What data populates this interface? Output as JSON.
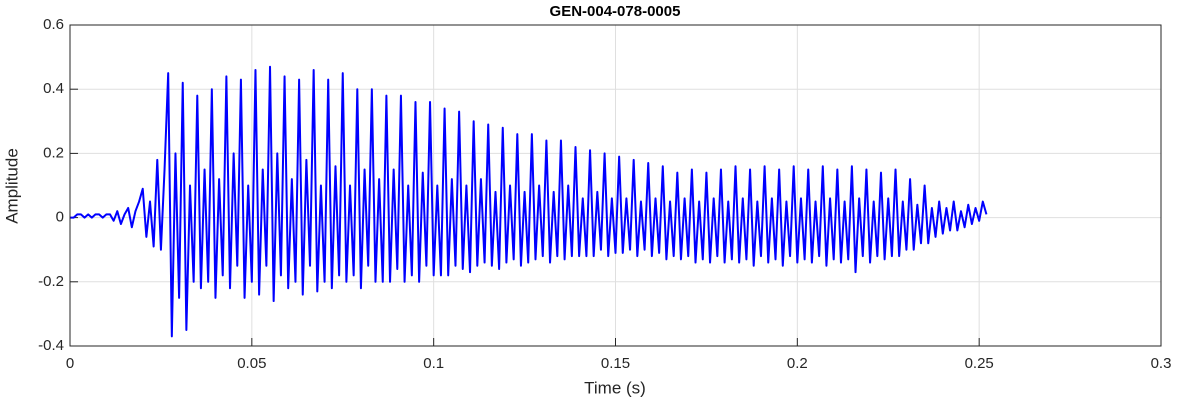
{
  "chart_data": {
    "type": "line",
    "title": "GEN-004-078-0005",
    "xlabel": "Time (s)",
    "ylabel": "Amplitude",
    "color": "#0000ff",
    "grid": true,
    "xlim": [
      0,
      0.3
    ],
    "xticks": [
      0,
      0.05,
      0.1,
      0.15,
      0.2,
      0.25,
      0.3
    ],
    "ylim": [
      -0.4,
      0.6
    ],
    "yticks": [
      -0.4,
      -0.2,
      0,
      0.2,
      0.4,
      0.6
    ],
    "x": [
      0,
      0.001,
      0.002,
      0.003,
      0.004,
      0.005,
      0.006,
      0.007,
      0.008,
      0.009,
      0.01,
      0.011,
      0.012,
      0.013,
      0.014,
      0.015,
      0.016,
      0.017,
      0.018,
      0.019,
      0.02,
      0.021,
      0.022,
      0.023,
      0.024,
      0.025,
      0.026,
      0.027,
      0.028,
      0.029,
      0.03,
      0.031,
      0.032,
      0.033,
      0.034,
      0.035,
      0.036,
      0.037,
      0.038,
      0.039,
      0.04,
      0.041,
      0.042,
      0.043,
      0.044,
      0.045,
      0.046,
      0.047,
      0.048,
      0.049,
      0.05,
      0.051,
      0.052,
      0.053,
      0.054,
      0.055,
      0.056,
      0.057,
      0.058,
      0.059,
      0.06,
      0.061,
      0.062,
      0.063,
      0.064,
      0.065,
      0.066,
      0.067,
      0.068,
      0.069,
      0.07,
      0.071,
      0.072,
      0.073,
      0.074,
      0.075,
      0.076,
      0.077,
      0.078,
      0.079,
      0.08,
      0.081,
      0.082,
      0.083,
      0.084,
      0.085,
      0.086,
      0.087,
      0.088,
      0.089,
      0.09,
      0.091,
      0.092,
      0.093,
      0.094,
      0.095,
      0.096,
      0.097,
      0.098,
      0.099,
      0.1,
      0.101,
      0.102,
      0.103,
      0.104,
      0.105,
      0.106,
      0.107,
      0.108,
      0.109,
      0.11,
      0.111,
      0.112,
      0.113,
      0.114,
      0.115,
      0.116,
      0.117,
      0.118,
      0.119,
      0.12,
      0.121,
      0.122,
      0.123,
      0.124,
      0.125,
      0.126,
      0.127,
      0.128,
      0.129,
      0.13,
      0.131,
      0.132,
      0.133,
      0.134,
      0.135,
      0.136,
      0.137,
      0.138,
      0.139,
      0.14,
      0.141,
      0.142,
      0.143,
      0.144,
      0.145,
      0.146,
      0.147,
      0.148,
      0.149,
      0.15,
      0.151,
      0.152,
      0.153,
      0.154,
      0.155,
      0.156,
      0.157,
      0.158,
      0.159,
      0.16,
      0.161,
      0.162,
      0.163,
      0.164,
      0.165,
      0.166,
      0.167,
      0.168,
      0.169,
      0.17,
      0.171,
      0.172,
      0.173,
      0.174,
      0.175,
      0.176,
      0.177,
      0.178,
      0.179,
      0.18,
      0.181,
      0.182,
      0.183,
      0.184,
      0.185,
      0.186,
      0.187,
      0.188,
      0.189,
      0.19,
      0.191,
      0.192,
      0.193,
      0.194,
      0.195,
      0.196,
      0.197,
      0.198,
      0.199,
      0.2,
      0.201,
      0.202,
      0.203,
      0.204,
      0.205,
      0.206,
      0.207,
      0.208,
      0.209,
      0.21,
      0.211,
      0.212,
      0.213,
      0.214,
      0.215,
      0.216,
      0.217,
      0.218,
      0.219,
      0.22,
      0.221,
      0.222,
      0.223,
      0.224,
      0.225,
      0.226,
      0.227,
      0.228,
      0.229,
      0.23,
      0.231,
      0.232,
      0.233,
      0.234,
      0.235,
      0.236,
      0.237,
      0.238,
      0.239,
      0.24,
      0.241,
      0.242,
      0.243,
      0.244,
      0.245,
      0.246,
      0.247,
      0.248,
      0.249,
      0.25,
      0.251,
      0.252
    ],
    "values": [
      0,
      0,
      0.01,
      0.01,
      0,
      0.01,
      0,
      0.01,
      0.01,
      0,
      0.01,
      0.01,
      -0.01,
      0.02,
      -0.02,
      0.01,
      0.03,
      -0.03,
      0.02,
      0.05,
      0.09,
      -0.06,
      0.05,
      -0.09,
      0.18,
      -0.1,
      0.15,
      0.45,
      -0.37,
      0.2,
      -0.25,
      0.42,
      -0.35,
      0.1,
      -0.2,
      0.38,
      -0.22,
      0.15,
      -0.2,
      0.4,
      -0.25,
      0.12,
      -0.18,
      0.44,
      -0.22,
      0.2,
      -0.15,
      0.43,
      -0.25,
      0.1,
      -0.2,
      0.46,
      -0.24,
      0.15,
      -0.15,
      0.47,
      -0.26,
      0.2,
      -0.18,
      0.44,
      -0.22,
      0.12,
      -0.2,
      0.43,
      -0.24,
      0.18,
      -0.15,
      0.46,
      -0.23,
      0.1,
      -0.2,
      0.43,
      -0.22,
      0.16,
      -0.18,
      0.45,
      -0.2,
      0.1,
      -0.18,
      0.4,
      -0.22,
      0.15,
      -0.15,
      0.4,
      -0.2,
      0.12,
      -0.2,
      0.38,
      -0.2,
      0.15,
      -0.16,
      0.38,
      -0.2,
      0.1,
      -0.18,
      0.36,
      -0.2,
      0.14,
      -0.15,
      0.36,
      -0.18,
      0.1,
      -0.18,
      0.34,
      -0.18,
      0.12,
      -0.15,
      0.33,
      -0.16,
      0.1,
      -0.17,
      0.3,
      -0.15,
      0.12,
      -0.14,
      0.29,
      -0.15,
      0.08,
      -0.16,
      0.28,
      -0.14,
      0.1,
      -0.13,
      0.26,
      -0.15,
      0.08,
      -0.14,
      0.26,
      -0.13,
      0.1,
      -0.12,
      0.24,
      -0.14,
      0.08,
      -0.12,
      0.24,
      -0.13,
      0.1,
      -0.12,
      0.22,
      -0.12,
      0.06,
      -0.12,
      0.21,
      -0.12,
      0.08,
      -0.1,
      0.2,
      -0.12,
      0.06,
      -0.11,
      0.19,
      -0.11,
      0.06,
      -0.1,
      0.18,
      -0.12,
      0.05,
      -0.1,
      0.17,
      -0.12,
      0.06,
      -0.11,
      0.16,
      -0.13,
      0.05,
      -0.12,
      0.14,
      -0.13,
      0.06,
      -0.12,
      0.15,
      -0.14,
      0.05,
      -0.13,
      0.14,
      -0.14,
      0.06,
      -0.12,
      0.15,
      -0.14,
      0.05,
      -0.13,
      0.16,
      -0.14,
      0.06,
      -0.13,
      0.15,
      -0.15,
      0.05,
      -0.12,
      0.16,
      -0.14,
      0.06,
      -0.13,
      0.15,
      -0.15,
      0.05,
      -0.12,
      0.16,
      -0.14,
      0.06,
      -0.13,
      0.15,
      -0.14,
      0.05,
      -0.12,
      0.16,
      -0.15,
      0.06,
      -0.13,
      0.15,
      -0.14,
      0.05,
      -0.13,
      0.16,
      -0.17,
      0.06,
      -0.12,
      0.15,
      -0.14,
      0.05,
      -0.12,
      0.14,
      -0.13,
      0.06,
      -0.12,
      0.15,
      -0.12,
      0.05,
      -0.1,
      0.12,
      -0.1,
      0.04,
      -0.08,
      0.1,
      -0.08,
      0.03,
      -0.06,
      0.05,
      -0.05,
      0.03,
      -0.04,
      0.05,
      -0.04,
      0.02,
      -0.03,
      0.04,
      -0.02,
      0.03,
      -0.01,
      0.05,
      0.01
    ]
  }
}
